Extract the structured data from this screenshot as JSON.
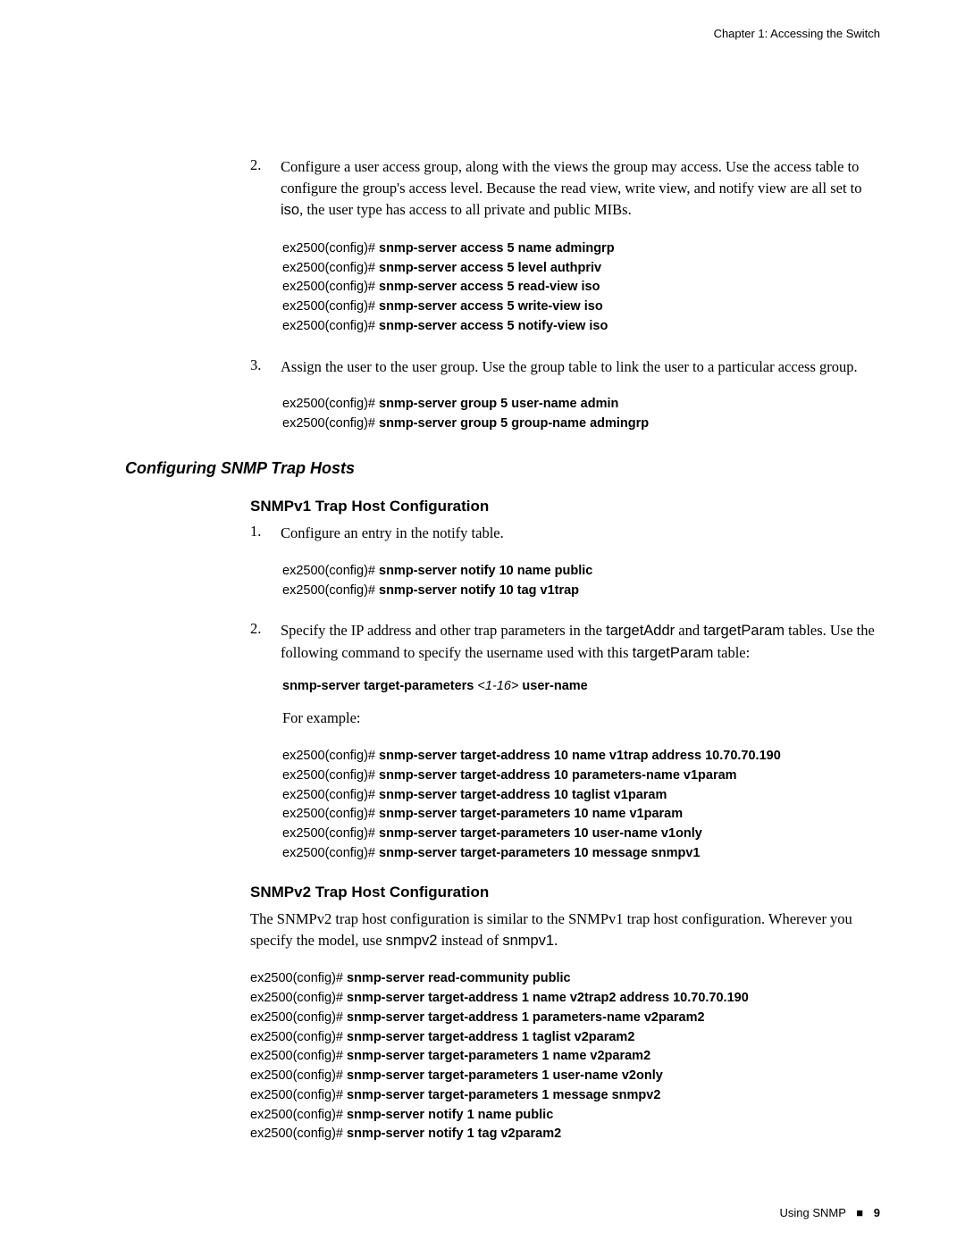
{
  "header": "Chapter 1: Accessing the Switch",
  "step2": {
    "num": "2.",
    "text_parts": [
      "Configure a user access group, along with the views the group may access. Use the access table to configure the group's access level. Because the read view, write view, and notify view are all set to ",
      "iso",
      ", the user type has access to all private and public MIBs."
    ]
  },
  "code1": [
    {
      "p": "ex2500(config)# ",
      "c": "snmp-server access 5 name admingrp"
    },
    {
      "p": "ex2500(config)# ",
      "c": "snmp-server access 5 level authpriv"
    },
    {
      "p": "ex2500(config)# ",
      "c": "snmp-server access 5 read-view iso"
    },
    {
      "p": "ex2500(config)# ",
      "c": "snmp-server access 5 write-view iso"
    },
    {
      "p": "ex2500(config)# ",
      "c": "snmp-server access 5 notify-view iso"
    }
  ],
  "step3": {
    "num": "3.",
    "text": "Assign the user to the user group. Use the group table to link the user to a particular access group."
  },
  "code2": [
    {
      "p": "ex2500(config)# ",
      "c": "snmp-server group 5 user-name admin"
    },
    {
      "p": "ex2500(config)# ",
      "c": "snmp-server group 5 group-name admingrp"
    }
  ],
  "section_heading": "Configuring SNMP Trap Hosts",
  "sub1": "SNMPv1 Trap Host Configuration",
  "v1_step1": {
    "num": "1.",
    "text": "Configure an entry in the notify table."
  },
  "code3": [
    {
      "p": "ex2500(config)# ",
      "c": "snmp-server notify 10 name public"
    },
    {
      "p": "ex2500(config)# ",
      "c": "snmp-server notify 10 tag v1trap"
    }
  ],
  "v1_step2": {
    "num": "2.",
    "parts": [
      "Specify the IP address and other trap parameters in the ",
      "targetAddr",
      " and ",
      "targetParam",
      " tables. Use the following command to specify the username used with this ",
      "targetParam",
      " table:"
    ]
  },
  "syntax": {
    "cmd": "snmp-server target-parameters ",
    "param": " <1-16> ",
    "tail": " user-name"
  },
  "forex": "For example:",
  "code4": [
    {
      "p": "ex2500(config)# ",
      "c": "snmp-server target-address 10 name v1trap address 10.70.70.190"
    },
    {
      "p": "ex2500(config)# ",
      "c": "snmp-server target-address 10 parameters-name v1param"
    },
    {
      "p": "ex2500(config)# ",
      "c": "snmp-server target-address 10 taglist v1param"
    },
    {
      "p": "ex2500(config)# ",
      "c": "snmp-server target-parameters 10 name v1param"
    },
    {
      "p": "ex2500(config)# ",
      "c": "snmp-server target-parameters 10 user-name v1only"
    },
    {
      "p": "ex2500(config)# ",
      "c": "snmp-server target-parameters 10 message snmpv1"
    }
  ],
  "sub2": "SNMPv2 Trap Host Configuration",
  "v2_intro_parts": [
    "The SNMPv2 trap host configuration is similar to the SNMPv1 trap host configuration. Wherever you specify the model, use ",
    "snmpv2",
    " instead of ",
    "snmpv1",
    "."
  ],
  "code5": [
    {
      "p": "ex2500(config)# ",
      "c": "snmp-server read-community public"
    },
    {
      "p": "ex2500(config)# ",
      "c": "snmp-server target-address 1 name v2trap2 address 10.70.70.190"
    },
    {
      "p": "ex2500(config)# ",
      "c": "snmp-server target-address 1 parameters-name v2param2"
    },
    {
      "p": "ex2500(config)# ",
      "c": "snmp-server target-address 1 taglist v2param2"
    },
    {
      "p": "ex2500(config)# ",
      "c": "snmp-server target-parameters 1 name v2param2"
    },
    {
      "p": "ex2500(config)# ",
      "c": "snmp-server target-parameters 1 user-name v2only"
    },
    {
      "p": "ex2500(config)# ",
      "c": "snmp-server target-parameters 1 message snmpv2"
    },
    {
      "p": "ex2500(config)# ",
      "c": "snmp-server notify 1 name public"
    },
    {
      "p": "ex2500(config)# ",
      "c": "snmp-server notify 1 tag v2param2"
    }
  ],
  "footer": {
    "text": "Using SNMP",
    "marker": "■",
    "page": "9"
  }
}
